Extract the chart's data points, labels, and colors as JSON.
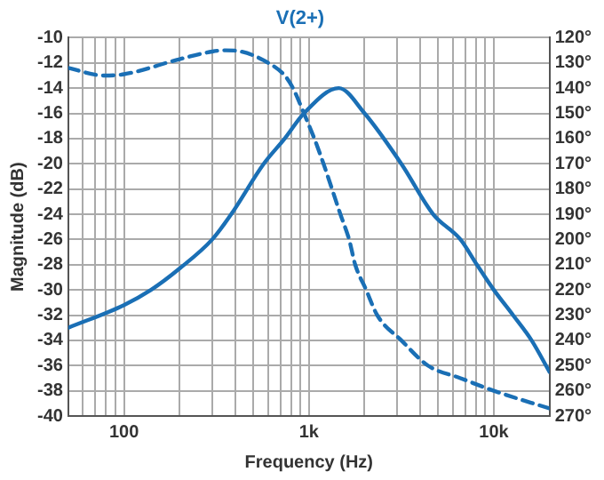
{
  "chart_data": {
    "type": "line",
    "title": "V(2+)",
    "xlabel": "Frequency (Hz)",
    "ylabel": "Magnitude (dB)",
    "log": "x",
    "grid": true,
    "legend": false,
    "marker": "none",
    "xlim": [
      50,
      20000
    ],
    "xticks": [
      {
        "value": 50,
        "label": null
      },
      {
        "value": 60,
        "label": null
      },
      {
        "value": 70,
        "label": null
      },
      {
        "value": 80,
        "label": null
      },
      {
        "value": 90,
        "label": null
      },
      {
        "value": 100,
        "label": "100"
      },
      {
        "value": 200,
        "label": null
      },
      {
        "value": 300,
        "label": null
      },
      {
        "value": 400,
        "label": null
      },
      {
        "value": 500,
        "label": null
      },
      {
        "value": 600,
        "label": null
      },
      {
        "value": 700,
        "label": null
      },
      {
        "value": 800,
        "label": null
      },
      {
        "value": 900,
        "label": null
      },
      {
        "value": 1000,
        "label": "1k"
      },
      {
        "value": 2000,
        "label": null
      },
      {
        "value": 3000,
        "label": null
      },
      {
        "value": 4000,
        "label": null
      },
      {
        "value": 5000,
        "label": null
      },
      {
        "value": 6000,
        "label": null
      },
      {
        "value": 7000,
        "label": null
      },
      {
        "value": 8000,
        "label": null
      },
      {
        "value": 9000,
        "label": null
      },
      {
        "value": 10000,
        "label": "10k"
      },
      {
        "value": 20000,
        "label": null
      }
    ],
    "ylim": [
      -40,
      -10
    ],
    "yticks": [
      -40,
      -38,
      -36,
      -34,
      -32,
      -30,
      -28,
      -26,
      -24,
      -22,
      -20,
      -18,
      -16,
      -14,
      -12,
      -10
    ],
    "y2lim": [
      270,
      120
    ],
    "y2ticks": [
      {
        "value": 120,
        "label": "120°"
      },
      {
        "value": 130,
        "label": "130°"
      },
      {
        "value": 140,
        "label": "140°"
      },
      {
        "value": 150,
        "label": "150°"
      },
      {
        "value": 160,
        "label": "160°"
      },
      {
        "value": 170,
        "label": "170°"
      },
      {
        "value": 180,
        "label": "180°"
      },
      {
        "value": 190,
        "label": "190°"
      },
      {
        "value": 200,
        "label": "200°"
      },
      {
        "value": 210,
        "label": "210°"
      },
      {
        "value": 220,
        "label": "220°"
      },
      {
        "value": 230,
        "label": "230°"
      },
      {
        "value": 240,
        "label": "240°"
      },
      {
        "value": 250,
        "label": "250°"
      },
      {
        "value": 260,
        "label": "260°"
      },
      {
        "value": 270,
        "label": "270°"
      }
    ],
    "series": [
      {
        "color": "#1a6fb5",
        "line_style": "solid",
        "x": [
          50,
          100,
          140,
          200,
          300,
          380,
          570,
          740,
          940,
          1450,
          2000,
          3160,
          4700,
          6600,
          8100,
          10000,
          12700,
          16000,
          20000
        ],
        "values": [
          -33,
          -31.2,
          -30,
          -28.3,
          -26,
          -24,
          -20,
          -18,
          -16,
          -14,
          -16,
          -20,
          -24,
          -26,
          -28,
          -30,
          -32,
          -34,
          -36.5
        ]
      },
      {
        "color": "#1a6fb5",
        "line_style": "dashed",
        "axis": "y2",
        "x": [
          50,
          78,
          100,
          200,
          300,
          350,
          430,
          570,
          740,
          820,
          940,
          1070,
          1200,
          1480,
          1650,
          1780,
          2040,
          2340,
          3160,
          4400,
          6600,
          10000,
          20000
        ],
        "values": [
          132,
          135,
          134.5,
          128.5,
          125.5,
          125,
          125.5,
          129,
          135,
          140,
          150,
          160,
          170,
          190,
          200,
          210,
          220,
          230,
          240,
          250,
          255,
          260,
          267
        ]
      }
    ]
  }
}
